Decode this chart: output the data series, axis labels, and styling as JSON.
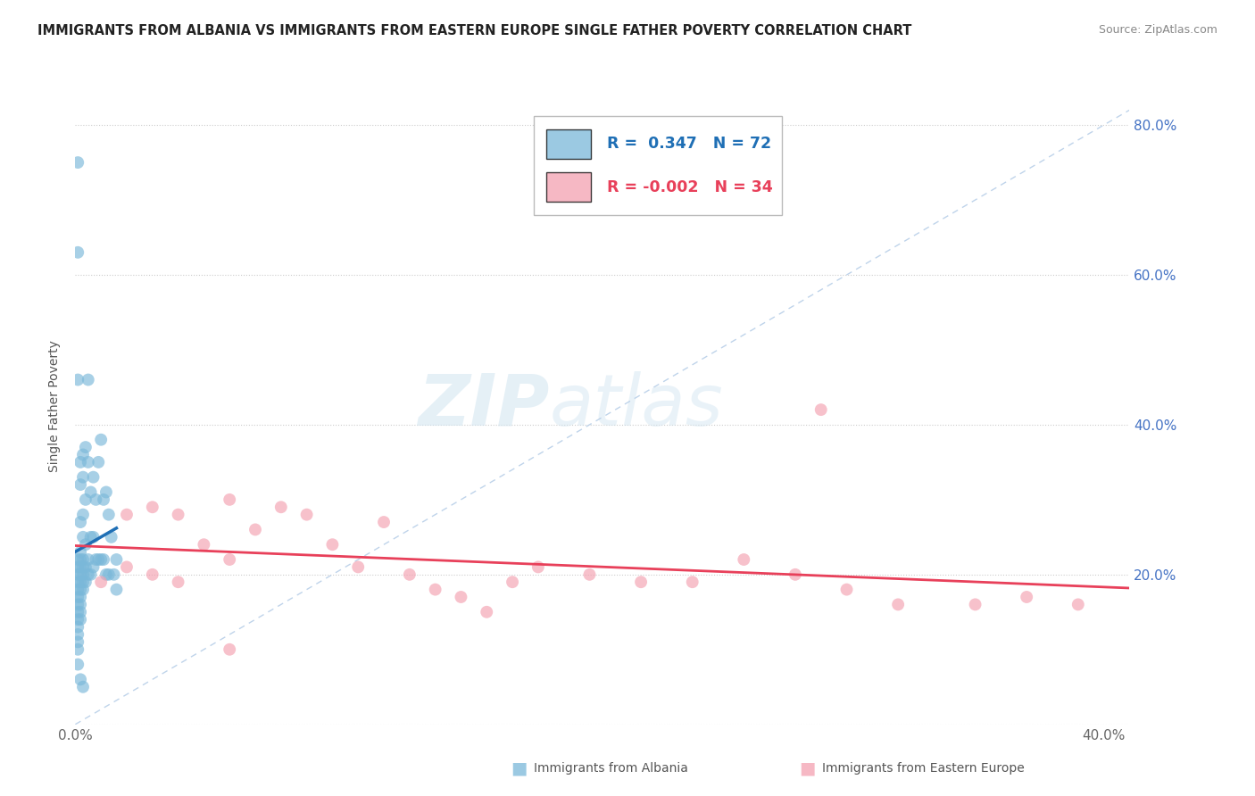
{
  "title": "IMMIGRANTS FROM ALBANIA VS IMMIGRANTS FROM EASTERN EUROPE SINGLE FATHER POVERTY CORRELATION CHART",
  "source": "Source: ZipAtlas.com",
  "ylabel": "Single Father Poverty",
  "xlim": [
    0.0,
    0.41
  ],
  "ylim": [
    0.0,
    0.85
  ],
  "x_ticks": [
    0.0,
    0.05,
    0.1,
    0.15,
    0.2,
    0.25,
    0.3,
    0.35,
    0.4
  ],
  "x_tick_labels": [
    "0.0%",
    "",
    "",
    "",
    "",
    "",
    "",
    "",
    "40.0%"
  ],
  "y_ticks": [
    0.0,
    0.2,
    0.4,
    0.6,
    0.8
  ],
  "y_tick_labels_right": [
    "",
    "20.0%",
    "40.0%",
    "60.0%",
    "80.0%"
  ],
  "R_albania": 0.347,
  "N_albania": 72,
  "R_eastern": -0.002,
  "N_eastern": 34,
  "albania_color": "#7ab8d9",
  "albania_line_color": "#1f6fb5",
  "eastern_color": "#f4a0b0",
  "eastern_line_color": "#e8405a",
  "ref_line_color": "#b8cfe8",
  "watermark_color": "#d0e4f0",
  "legend_label_albania": "Immigrants from Albania",
  "legend_label_eastern": "Immigrants from Eastern Europe",
  "albania_x": [
    0.001,
    0.001,
    0.001,
    0.001,
    0.001,
    0.001,
    0.001,
    0.001,
    0.001,
    0.001,
    0.001,
    0.001,
    0.001,
    0.001,
    0.001,
    0.001,
    0.001,
    0.002,
    0.002,
    0.002,
    0.002,
    0.002,
    0.002,
    0.002,
    0.002,
    0.002,
    0.002,
    0.002,
    0.002,
    0.002,
    0.002,
    0.003,
    0.003,
    0.003,
    0.003,
    0.003,
    0.003,
    0.003,
    0.003,
    0.003,
    0.003,
    0.004,
    0.004,
    0.004,
    0.004,
    0.004,
    0.005,
    0.005,
    0.005,
    0.005,
    0.006,
    0.006,
    0.006,
    0.007,
    0.007,
    0.007,
    0.008,
    0.008,
    0.009,
    0.009,
    0.01,
    0.01,
    0.011,
    0.011,
    0.012,
    0.012,
    0.013,
    0.013,
    0.014,
    0.015,
    0.016,
    0.016
  ],
  "albania_y": [
    0.75,
    0.63,
    0.46,
    0.22,
    0.21,
    0.2,
    0.19,
    0.18,
    0.17,
    0.16,
    0.15,
    0.14,
    0.13,
    0.12,
    0.11,
    0.1,
    0.08,
    0.35,
    0.32,
    0.27,
    0.23,
    0.22,
    0.21,
    0.2,
    0.19,
    0.18,
    0.17,
    0.16,
    0.15,
    0.14,
    0.06,
    0.36,
    0.33,
    0.28,
    0.25,
    0.22,
    0.21,
    0.2,
    0.19,
    0.18,
    0.05,
    0.37,
    0.3,
    0.24,
    0.21,
    0.19,
    0.46,
    0.35,
    0.22,
    0.2,
    0.31,
    0.25,
    0.2,
    0.33,
    0.25,
    0.21,
    0.3,
    0.22,
    0.35,
    0.22,
    0.38,
    0.22,
    0.3,
    0.22,
    0.31,
    0.2,
    0.28,
    0.2,
    0.25,
    0.2,
    0.22,
    0.18
  ],
  "eastern_x": [
    0.01,
    0.02,
    0.02,
    0.03,
    0.03,
    0.04,
    0.04,
    0.05,
    0.06,
    0.06,
    0.07,
    0.08,
    0.09,
    0.1,
    0.11,
    0.12,
    0.13,
    0.14,
    0.15,
    0.16,
    0.17,
    0.18,
    0.2,
    0.22,
    0.24,
    0.26,
    0.28,
    0.3,
    0.32,
    0.35,
    0.37,
    0.39,
    0.29,
    0.06
  ],
  "eastern_y": [
    0.19,
    0.28,
    0.21,
    0.29,
    0.2,
    0.28,
    0.19,
    0.24,
    0.3,
    0.22,
    0.26,
    0.29,
    0.28,
    0.24,
    0.21,
    0.27,
    0.2,
    0.18,
    0.17,
    0.15,
    0.19,
    0.21,
    0.2,
    0.19,
    0.19,
    0.22,
    0.2,
    0.18,
    0.16,
    0.16,
    0.17,
    0.16,
    0.42,
    0.1
  ]
}
